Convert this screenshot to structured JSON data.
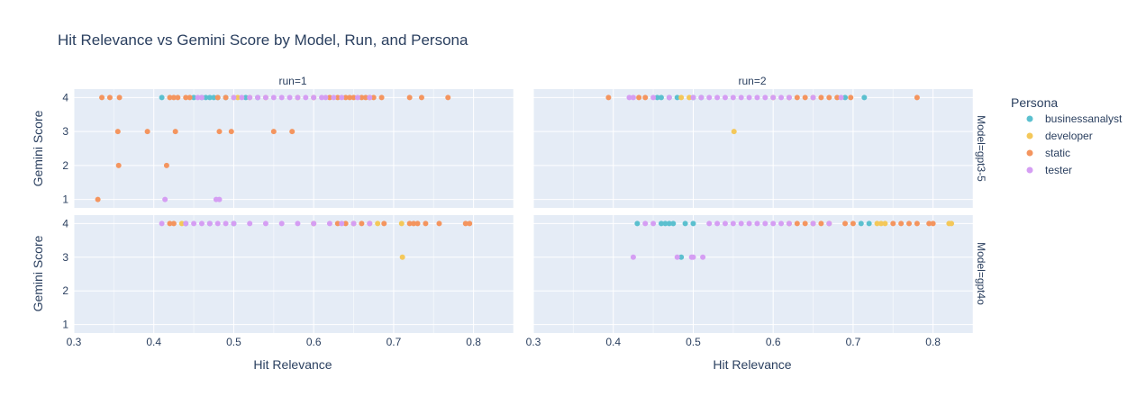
{
  "chart_data": {
    "type": "scatter",
    "title": "Hit Relevance vs Gemini Score by Model, Run, and Persona",
    "xlabel": "Hit Relevance",
    "ylabel": "Gemini Score",
    "xlim": [
      0.3,
      0.85
    ],
    "ylim": [
      0.75,
      4.25
    ],
    "x_ticks": [
      "0.3",
      "0.4",
      "0.5",
      "0.6",
      "0.7",
      "0.8"
    ],
    "y_ticks": [
      "1",
      "2",
      "3",
      "4"
    ],
    "column_labels": [
      "run=1",
      "run=2"
    ],
    "row_labels": [
      "Model=gpt3-5",
      "Model=gpt4o"
    ],
    "grid": true,
    "legend": {
      "title": "Persona",
      "placement": "right",
      "items": [
        {
          "name": "businessanalyst",
          "color": "#5bc0cf"
        },
        {
          "name": "developer",
          "color": "#f4c85a"
        },
        {
          "name": "static",
          "color": "#f4955f"
        },
        {
          "name": "tester",
          "color": "#d59ef3"
        }
      ]
    },
    "panels": [
      {
        "run": "1",
        "model": "gpt3-5",
        "series": [
          {
            "name": "businessanalyst",
            "points": [
              [
                0.41,
                4
              ],
              [
                0.45,
                4
              ],
              [
                0.46,
                4
              ],
              [
                0.465,
                4
              ],
              [
                0.47,
                4
              ],
              [
                0.475,
                4
              ],
              [
                0.48,
                4
              ],
              [
                0.49,
                4
              ],
              [
                0.515,
                4
              ],
              [
                0.53,
                4
              ]
            ]
          },
          {
            "name": "developer",
            "points": [
              [
                0.5,
                4
              ],
              [
                0.505,
                4
              ],
              [
                0.52,
                4
              ],
              [
                0.54,
                4
              ],
              [
                0.58,
                4
              ]
            ]
          },
          {
            "name": "static",
            "points": [
              [
                0.335,
                4
              ],
              [
                0.345,
                4
              ],
              [
                0.357,
                4
              ],
              [
                0.42,
                4
              ],
              [
                0.425,
                4
              ],
              [
                0.43,
                4
              ],
              [
                0.44,
                4
              ],
              [
                0.445,
                4
              ],
              [
                0.48,
                4
              ],
              [
                0.49,
                4
              ],
              [
                0.6,
                4
              ],
              [
                0.62,
                4
              ],
              [
                0.63,
                4
              ],
              [
                0.64,
                4
              ],
              [
                0.645,
                4
              ],
              [
                0.65,
                4
              ],
              [
                0.66,
                4
              ],
              [
                0.665,
                4
              ],
              [
                0.67,
                4
              ],
              [
                0.675,
                4
              ],
              [
                0.685,
                4
              ],
              [
                0.72,
                4
              ],
              [
                0.735,
                4
              ],
              [
                0.768,
                4
              ],
              [
                0.355,
                3
              ],
              [
                0.392,
                3
              ],
              [
                0.427,
                3
              ],
              [
                0.482,
                3
              ],
              [
                0.497,
                3
              ],
              [
                0.55,
                3
              ],
              [
                0.573,
                3
              ],
              [
                0.356,
                2
              ],
              [
                0.416,
                2
              ],
              [
                0.33,
                1
              ]
            ]
          },
          {
            "name": "tester",
            "points": [
              [
                0.455,
                4
              ],
              [
                0.46,
                4
              ],
              [
                0.5,
                4
              ],
              [
                0.51,
                4
              ],
              [
                0.52,
                4
              ],
              [
                0.53,
                4
              ],
              [
                0.54,
                4
              ],
              [
                0.55,
                4
              ],
              [
                0.56,
                4
              ],
              [
                0.57,
                4
              ],
              [
                0.58,
                4
              ],
              [
                0.59,
                4
              ],
              [
                0.6,
                4
              ],
              [
                0.61,
                4
              ],
              [
                0.615,
                4
              ],
              [
                0.625,
                4
              ],
              [
                0.635,
                4
              ],
              [
                0.655,
                4
              ],
              [
                0.67,
                4
              ],
              [
                0.414,
                1
              ],
              [
                0.478,
                1
              ],
              [
                0.482,
                1
              ]
            ]
          }
        ]
      },
      {
        "run": "2",
        "model": "gpt3-5",
        "series": [
          {
            "name": "businessanalyst",
            "points": [
              [
                0.455,
                4
              ],
              [
                0.46,
                4
              ],
              [
                0.47,
                4
              ],
              [
                0.48,
                4
              ],
              [
                0.5,
                4
              ],
              [
                0.51,
                4
              ],
              [
                0.69,
                4
              ],
              [
                0.714,
                4
              ]
            ]
          },
          {
            "name": "developer",
            "points": [
              [
                0.485,
                4
              ],
              [
                0.495,
                4
              ],
              [
                0.6,
                4
              ],
              [
                0.551,
                3
              ]
            ]
          },
          {
            "name": "static",
            "points": [
              [
                0.394,
                4
              ],
              [
                0.432,
                4
              ],
              [
                0.44,
                4
              ],
              [
                0.62,
                4
              ],
              [
                0.63,
                4
              ],
              [
                0.64,
                4
              ],
              [
                0.65,
                4
              ],
              [
                0.66,
                4
              ],
              [
                0.67,
                4
              ],
              [
                0.68,
                4
              ],
              [
                0.697,
                4
              ],
              [
                0.78,
                4
              ]
            ]
          },
          {
            "name": "tester",
            "points": [
              [
                0.42,
                4
              ],
              [
                0.425,
                4
              ],
              [
                0.45,
                4
              ],
              [
                0.47,
                4
              ],
              [
                0.5,
                4
              ],
              [
                0.51,
                4
              ],
              [
                0.52,
                4
              ],
              [
                0.53,
                4
              ],
              [
                0.54,
                4
              ],
              [
                0.55,
                4
              ],
              [
                0.56,
                4
              ],
              [
                0.57,
                4
              ],
              [
                0.58,
                4
              ],
              [
                0.59,
                4
              ],
              [
                0.6,
                4
              ],
              [
                0.61,
                4
              ],
              [
                0.62,
                4
              ],
              [
                0.65,
                4
              ],
              [
                0.685,
                4
              ]
            ]
          }
        ]
      },
      {
        "run": "1",
        "model": "gpt4o",
        "series": [
          {
            "name": "businessanalyst",
            "points": [
              [
                0.44,
                4
              ],
              [
                0.47,
                4
              ],
              [
                0.5,
                4
              ]
            ]
          },
          {
            "name": "developer",
            "points": [
              [
                0.435,
                4
              ],
              [
                0.68,
                4
              ],
              [
                0.71,
                4
              ],
              [
                0.711,
                3
              ]
            ]
          },
          {
            "name": "static",
            "points": [
              [
                0.42,
                4
              ],
              [
                0.425,
                4
              ],
              [
                0.6,
                4
              ],
              [
                0.63,
                4
              ],
              [
                0.64,
                4
              ],
              [
                0.65,
                4
              ],
              [
                0.66,
                4
              ],
              [
                0.67,
                4
              ],
              [
                0.688,
                4
              ],
              [
                0.72,
                4
              ],
              [
                0.725,
                4
              ],
              [
                0.73,
                4
              ],
              [
                0.74,
                4
              ],
              [
                0.757,
                4
              ],
              [
                0.79,
                4
              ],
              [
                0.795,
                4
              ]
            ]
          },
          {
            "name": "tester",
            "points": [
              [
                0.41,
                4
              ],
              [
                0.44,
                4
              ],
              [
                0.45,
                4
              ],
              [
                0.46,
                4
              ],
              [
                0.47,
                4
              ],
              [
                0.48,
                4
              ],
              [
                0.49,
                4
              ],
              [
                0.5,
                4
              ],
              [
                0.52,
                4
              ],
              [
                0.54,
                4
              ],
              [
                0.56,
                4
              ],
              [
                0.58,
                4
              ],
              [
                0.6,
                4
              ],
              [
                0.62,
                4
              ],
              [
                0.635,
                4
              ],
              [
                0.65,
                4
              ],
              [
                0.67,
                4
              ]
            ]
          }
        ]
      },
      {
        "run": "2",
        "model": "gpt4o",
        "series": [
          {
            "name": "businessanalyst",
            "points": [
              [
                0.43,
                4
              ],
              [
                0.46,
                4
              ],
              [
                0.465,
                4
              ],
              [
                0.47,
                4
              ],
              [
                0.475,
                4
              ],
              [
                0.49,
                4
              ],
              [
                0.5,
                4
              ],
              [
                0.71,
                4
              ],
              [
                0.72,
                4
              ],
              [
                0.485,
                3
              ]
            ]
          },
          {
            "name": "developer",
            "points": [
              [
                0.73,
                4
              ],
              [
                0.735,
                4
              ],
              [
                0.74,
                4
              ],
              [
                0.82,
                4
              ],
              [
                0.823,
                4
              ]
            ]
          },
          {
            "name": "static",
            "points": [
              [
                0.62,
                4
              ],
              [
                0.63,
                4
              ],
              [
                0.64,
                4
              ],
              [
                0.65,
                4
              ],
              [
                0.66,
                4
              ],
              [
                0.67,
                4
              ],
              [
                0.69,
                4
              ],
              [
                0.7,
                4
              ],
              [
                0.75,
                4
              ],
              [
                0.76,
                4
              ],
              [
                0.77,
                4
              ],
              [
                0.78,
                4
              ],
              [
                0.795,
                4
              ],
              [
                0.8,
                4
              ]
            ]
          },
          {
            "name": "tester",
            "points": [
              [
                0.44,
                4
              ],
              [
                0.45,
                4
              ],
              [
                0.52,
                4
              ],
              [
                0.53,
                4
              ],
              [
                0.54,
                4
              ],
              [
                0.55,
                4
              ],
              [
                0.56,
                4
              ],
              [
                0.57,
                4
              ],
              [
                0.58,
                4
              ],
              [
                0.59,
                4
              ],
              [
                0.6,
                4
              ],
              [
                0.61,
                4
              ],
              [
                0.62,
                4
              ],
              [
                0.65,
                4
              ],
              [
                0.67,
                4
              ],
              [
                0.425,
                3
              ],
              [
                0.48,
                3
              ],
              [
                0.498,
                3
              ],
              [
                0.5,
                3
              ],
              [
                0.512,
                3
              ]
            ]
          }
        ]
      }
    ]
  }
}
